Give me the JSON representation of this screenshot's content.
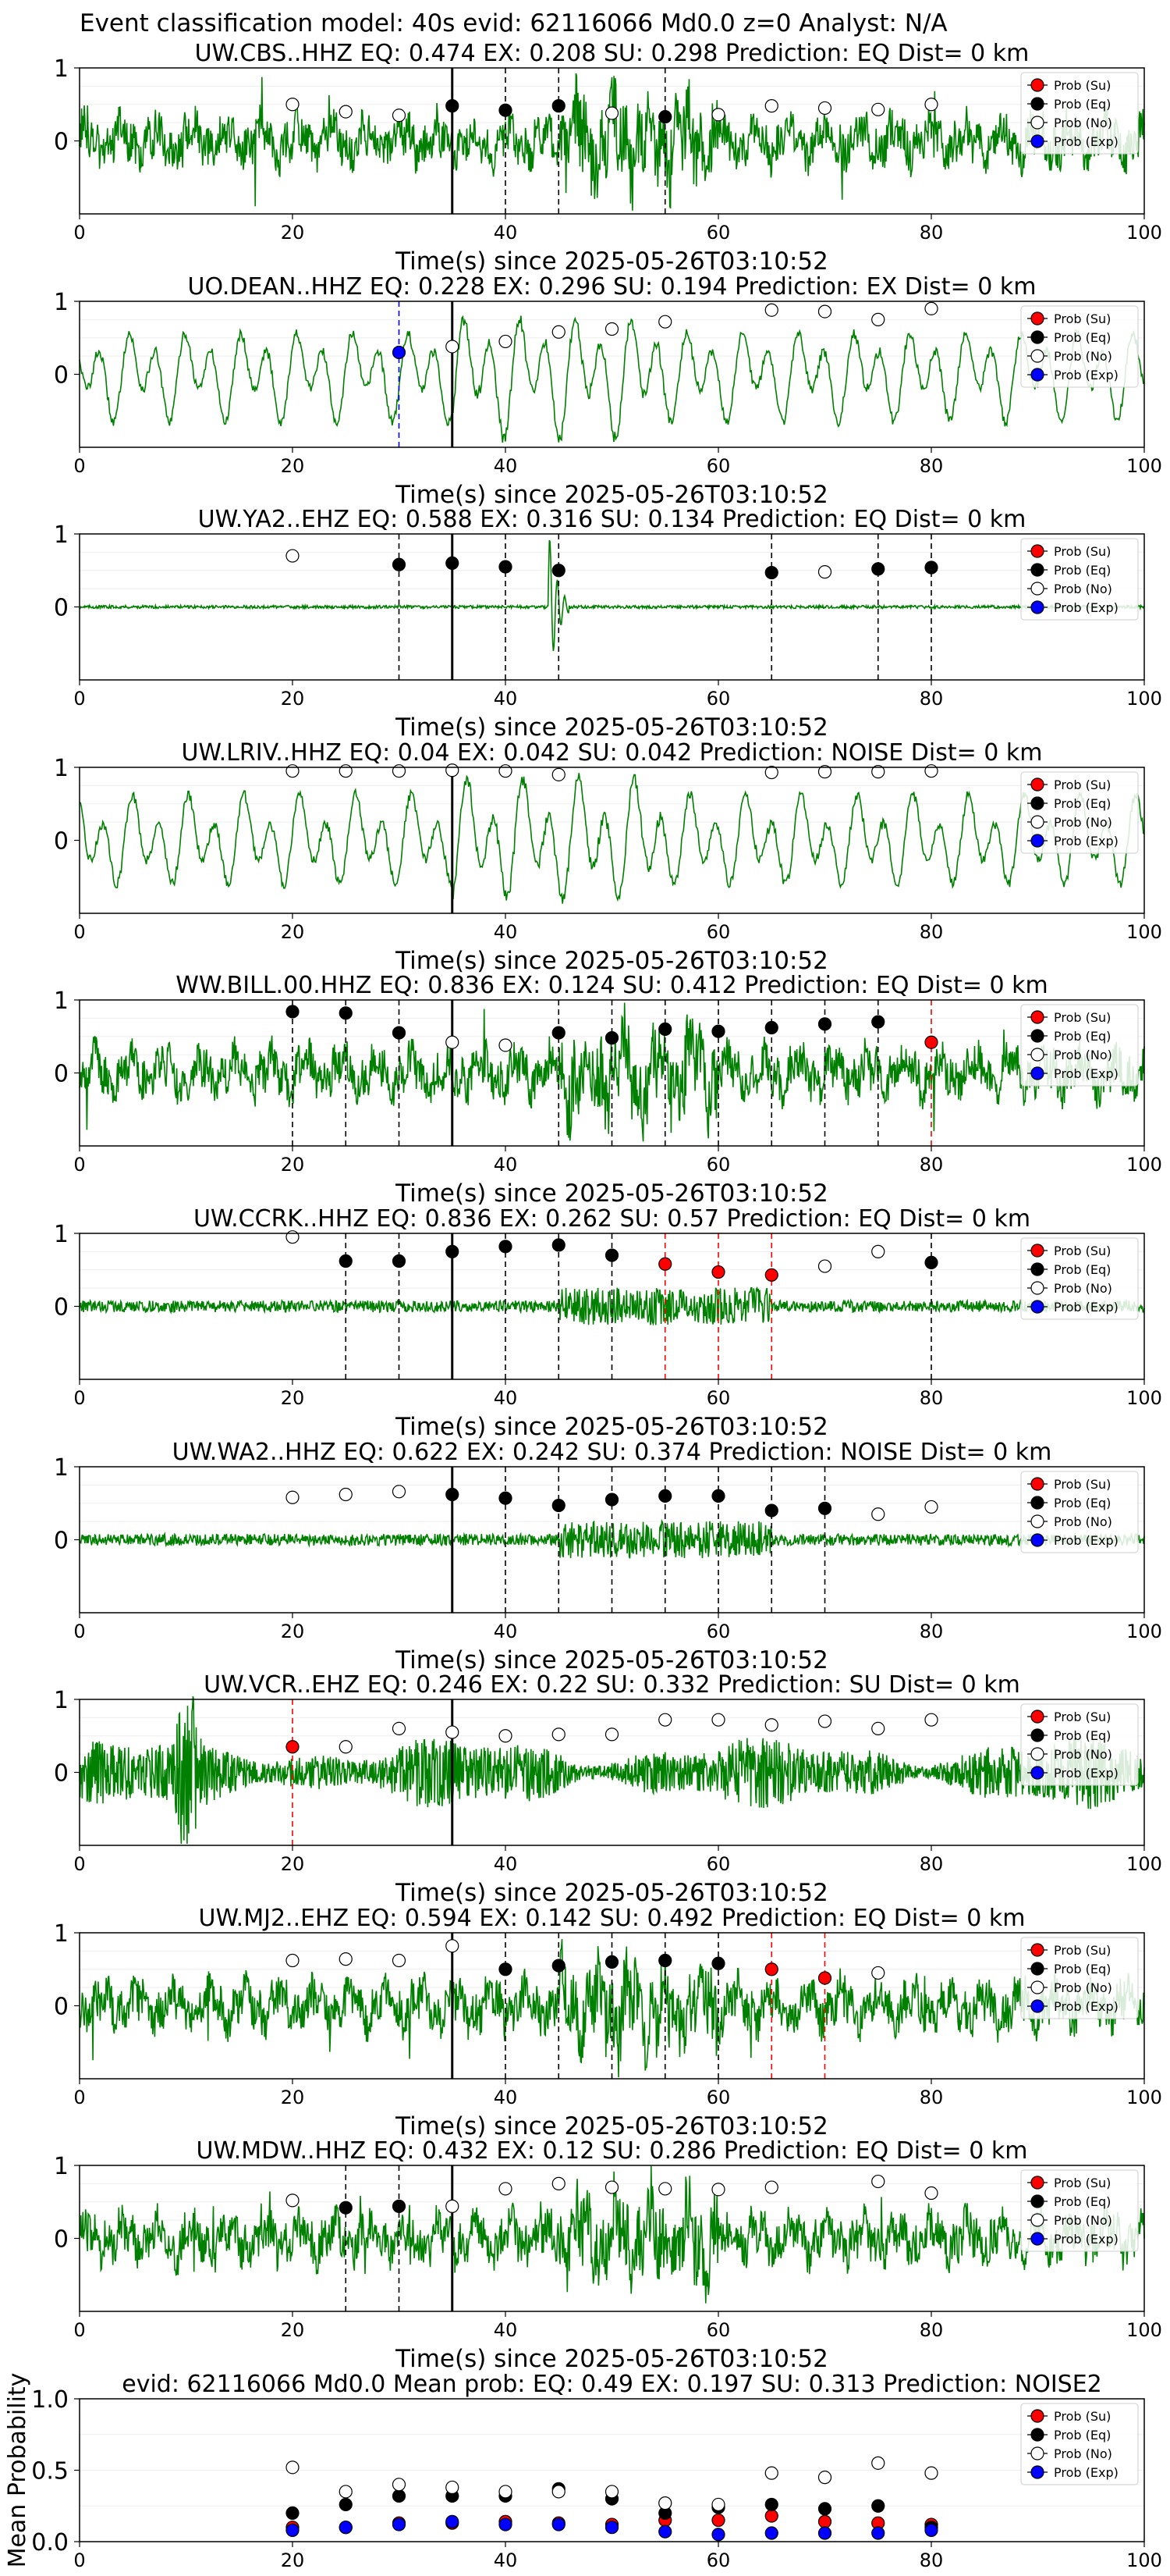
{
  "figure": {
    "suptitle": "Event classification model: 40s evid: 62116066 Md0.0 z=0 Analyst: N/A",
    "colors": {
      "waveform": "#008000",
      "su": "#ff0000",
      "eq": "#000000",
      "no": "#ffffff",
      "exp": "#0000ff",
      "pick_line": "#000000"
    },
    "legend": [
      "Prob (Su)",
      "Prob (Eq)",
      "Prob (No)",
      "Prob (Exp)"
    ]
  },
  "chart_data": [
    {
      "type": "line",
      "title": "UW.CBS..HHZ   EQ: 0.474  EX: 0.208  SU: 0.298   Prediction: EQ    Dist= 0 km",
      "xlabel": "Time(s) since 2025-05-26T03:10:52",
      "xlim": [
        0,
        100
      ],
      "xticks": [
        0,
        20,
        40,
        60,
        80,
        100
      ],
      "yticks": [
        0,
        1
      ],
      "waveform_style": "noisy",
      "pick_time": 35,
      "points": [
        {
          "x": 20,
          "y": 0.5,
          "cls": "no"
        },
        {
          "x": 25,
          "y": 0.4,
          "cls": "no"
        },
        {
          "x": 30,
          "y": 0.35,
          "cls": "no"
        },
        {
          "x": 35,
          "y": 0.48,
          "cls": "eq"
        },
        {
          "x": 40,
          "y": 0.42,
          "cls": "eq"
        },
        {
          "x": 45,
          "y": 0.48,
          "cls": "eq"
        },
        {
          "x": 50,
          "y": 0.38,
          "cls": "no"
        },
        {
          "x": 55,
          "y": 0.33,
          "cls": "eq"
        },
        {
          "x": 60,
          "y": 0.36,
          "cls": "no"
        },
        {
          "x": 65,
          "y": 0.48,
          "cls": "no"
        },
        {
          "x": 70,
          "y": 0.45,
          "cls": "no"
        },
        {
          "x": 75,
          "y": 0.43,
          "cls": "no"
        },
        {
          "x": 80,
          "y": 0.5,
          "cls": "no"
        }
      ]
    },
    {
      "type": "line",
      "title": "UO.DEAN..HHZ   EQ: 0.228  EX: 0.296  SU: 0.194   Prediction: EX    Dist= 0 km",
      "xlabel": "Time(s) since 2025-05-26T03:10:52",
      "xlim": [
        0,
        100
      ],
      "xticks": [
        0,
        20,
        40,
        60,
        80,
        100
      ],
      "yticks": [
        0,
        1
      ],
      "waveform_style": "wavy",
      "pick_time": 35,
      "points": [
        {
          "x": 30,
          "y": 0.3,
          "cls": "exp"
        },
        {
          "x": 35,
          "y": 0.38,
          "cls": "no"
        },
        {
          "x": 40,
          "y": 0.45,
          "cls": "no"
        },
        {
          "x": 45,
          "y": 0.58,
          "cls": "no"
        },
        {
          "x": 50,
          "y": 0.62,
          "cls": "no"
        },
        {
          "x": 55,
          "y": 0.72,
          "cls": "no"
        },
        {
          "x": 65,
          "y": 0.88,
          "cls": "no"
        },
        {
          "x": 70,
          "y": 0.86,
          "cls": "no"
        },
        {
          "x": 75,
          "y": 0.75,
          "cls": "no"
        },
        {
          "x": 80,
          "y": 0.9,
          "cls": "no"
        }
      ]
    },
    {
      "type": "line",
      "title": "UW.YA2..EHZ   EQ: 0.588  EX: 0.316  SU: 0.134   Prediction: EQ    Dist= 0 km",
      "xlabel": "Time(s) since 2025-05-26T03:10:52",
      "xlim": [
        0,
        100
      ],
      "xticks": [
        0,
        20,
        40,
        60,
        80,
        100
      ],
      "yticks": [
        0,
        1
      ],
      "waveform_style": "flat",
      "pick_time": 35,
      "points": [
        {
          "x": 20,
          "y": 0.7,
          "cls": "no"
        },
        {
          "x": 30,
          "y": 0.58,
          "cls": "eq"
        },
        {
          "x": 35,
          "y": 0.6,
          "cls": "eq"
        },
        {
          "x": 40,
          "y": 0.55,
          "cls": "eq"
        },
        {
          "x": 45,
          "y": 0.5,
          "cls": "eq"
        },
        {
          "x": 65,
          "y": 0.47,
          "cls": "eq"
        },
        {
          "x": 70,
          "y": 0.48,
          "cls": "no"
        },
        {
          "x": 75,
          "y": 0.52,
          "cls": "eq"
        },
        {
          "x": 80,
          "y": 0.54,
          "cls": "eq"
        }
      ]
    },
    {
      "type": "line",
      "title": "UW.LRIV..HHZ   EQ: 0.04  EX: 0.042  SU: 0.042   Prediction: NOISE    Dist= 0 km",
      "xlabel": "Time(s) since 2025-05-26T03:10:52",
      "xlim": [
        0,
        100
      ],
      "xticks": [
        0,
        20,
        40,
        60,
        80,
        100
      ],
      "yticks": [
        0,
        1
      ],
      "waveform_style": "wavy",
      "pick_time": 35,
      "points": [
        {
          "x": 20,
          "y": 0.95,
          "cls": "no"
        },
        {
          "x": 25,
          "y": 0.95,
          "cls": "no"
        },
        {
          "x": 30,
          "y": 0.95,
          "cls": "no"
        },
        {
          "x": 35,
          "y": 0.96,
          "cls": "no"
        },
        {
          "x": 40,
          "y": 0.95,
          "cls": "no"
        },
        {
          "x": 45,
          "y": 0.9,
          "cls": "no"
        },
        {
          "x": 65,
          "y": 0.93,
          "cls": "no"
        },
        {
          "x": 70,
          "y": 0.94,
          "cls": "no"
        },
        {
          "x": 75,
          "y": 0.94,
          "cls": "no"
        },
        {
          "x": 80,
          "y": 0.95,
          "cls": "no"
        }
      ]
    },
    {
      "type": "line",
      "title": "WW.BILL.00.HHZ   EQ: 0.836  EX: 0.124  SU: 0.412   Prediction: EQ    Dist= 0 km",
      "xlabel": "Time(s) since 2025-05-26T03:10:52",
      "xlim": [
        0,
        100
      ],
      "xticks": [
        0,
        20,
        40,
        60,
        80,
        100
      ],
      "yticks": [
        0,
        1
      ],
      "waveform_style": "noisy",
      "pick_time": 35,
      "points": [
        {
          "x": 20,
          "y": 0.84,
          "cls": "eq"
        },
        {
          "x": 25,
          "y": 0.82,
          "cls": "eq"
        },
        {
          "x": 30,
          "y": 0.55,
          "cls": "eq"
        },
        {
          "x": 35,
          "y": 0.42,
          "cls": "no"
        },
        {
          "x": 40,
          "y": 0.38,
          "cls": "no"
        },
        {
          "x": 45,
          "y": 0.55,
          "cls": "eq"
        },
        {
          "x": 50,
          "y": 0.48,
          "cls": "eq"
        },
        {
          "x": 55,
          "y": 0.6,
          "cls": "eq"
        },
        {
          "x": 60,
          "y": 0.57,
          "cls": "eq"
        },
        {
          "x": 65,
          "y": 0.62,
          "cls": "eq"
        },
        {
          "x": 70,
          "y": 0.67,
          "cls": "eq"
        },
        {
          "x": 75,
          "y": 0.7,
          "cls": "eq"
        },
        {
          "x": 80,
          "y": 0.42,
          "cls": "su"
        }
      ]
    },
    {
      "type": "line",
      "title": "UW.CCRK..HHZ   EQ: 0.836  EX: 0.262  SU: 0.57   Prediction: EQ    Dist= 0 km",
      "xlabel": "Time(s) since 2025-05-26T03:10:52",
      "xlim": [
        0,
        100
      ],
      "xticks": [
        0,
        20,
        40,
        60,
        80,
        100
      ],
      "yticks": [
        0,
        1
      ],
      "waveform_style": "quiet",
      "pick_time": 35,
      "points": [
        {
          "x": 20,
          "y": 0.95,
          "cls": "no"
        },
        {
          "x": 25,
          "y": 0.62,
          "cls": "eq"
        },
        {
          "x": 30,
          "y": 0.62,
          "cls": "eq"
        },
        {
          "x": 35,
          "y": 0.75,
          "cls": "eq"
        },
        {
          "x": 40,
          "y": 0.82,
          "cls": "eq"
        },
        {
          "x": 45,
          "y": 0.84,
          "cls": "eq"
        },
        {
          "x": 50,
          "y": 0.7,
          "cls": "eq"
        },
        {
          "x": 55,
          "y": 0.58,
          "cls": "su"
        },
        {
          "x": 60,
          "y": 0.47,
          "cls": "su"
        },
        {
          "x": 65,
          "y": 0.43,
          "cls": "su"
        },
        {
          "x": 70,
          "y": 0.55,
          "cls": "no"
        },
        {
          "x": 75,
          "y": 0.75,
          "cls": "no"
        },
        {
          "x": 80,
          "y": 0.6,
          "cls": "eq"
        }
      ]
    },
    {
      "type": "line",
      "title": "UW.WA2..HHZ   EQ: 0.622  EX: 0.242  SU: 0.374   Prediction: NOISE    Dist= 0 km",
      "xlabel": "Time(s) since 2025-05-26T03:10:52",
      "xlim": [
        0,
        100
      ],
      "xticks": [
        0,
        20,
        40,
        60,
        80,
        100
      ],
      "yticks": [
        0,
        1
      ],
      "waveform_style": "quiet",
      "pick_time": 35,
      "points": [
        {
          "x": 20,
          "y": 0.58,
          "cls": "no"
        },
        {
          "x": 25,
          "y": 0.62,
          "cls": "no"
        },
        {
          "x": 30,
          "y": 0.66,
          "cls": "no"
        },
        {
          "x": 35,
          "y": 0.62,
          "cls": "eq"
        },
        {
          "x": 40,
          "y": 0.57,
          "cls": "eq"
        },
        {
          "x": 45,
          "y": 0.47,
          "cls": "eq"
        },
        {
          "x": 50,
          "y": 0.55,
          "cls": "eq"
        },
        {
          "x": 55,
          "y": 0.6,
          "cls": "eq"
        },
        {
          "x": 60,
          "y": 0.6,
          "cls": "eq"
        },
        {
          "x": 65,
          "y": 0.4,
          "cls": "eq"
        },
        {
          "x": 70,
          "y": 0.43,
          "cls": "eq"
        },
        {
          "x": 75,
          "y": 0.35,
          "cls": "no"
        },
        {
          "x": 80,
          "y": 0.45,
          "cls": "no"
        }
      ]
    },
    {
      "type": "line",
      "title": "UW.VCR..EHZ   EQ: 0.246  EX: 0.22  SU: 0.332   Prediction: SU    Dist= 0 km",
      "xlabel": "Time(s) since 2025-05-26T03:10:52",
      "xlim": [
        0,
        100
      ],
      "xticks": [
        0,
        20,
        40,
        60,
        80,
        100
      ],
      "yticks": [
        0,
        1
      ],
      "waveform_style": "dense",
      "pick_time": 35,
      "points": [
        {
          "x": 20,
          "y": 0.35,
          "cls": "su"
        },
        {
          "x": 25,
          "y": 0.35,
          "cls": "no"
        },
        {
          "x": 30,
          "y": 0.6,
          "cls": "no"
        },
        {
          "x": 35,
          "y": 0.55,
          "cls": "no"
        },
        {
          "x": 40,
          "y": 0.5,
          "cls": "no"
        },
        {
          "x": 45,
          "y": 0.52,
          "cls": "no"
        },
        {
          "x": 50,
          "y": 0.52,
          "cls": "no"
        },
        {
          "x": 55,
          "y": 0.72,
          "cls": "no"
        },
        {
          "x": 60,
          "y": 0.72,
          "cls": "no"
        },
        {
          "x": 65,
          "y": 0.65,
          "cls": "no"
        },
        {
          "x": 70,
          "y": 0.7,
          "cls": "no"
        },
        {
          "x": 75,
          "y": 0.6,
          "cls": "no"
        },
        {
          "x": 80,
          "y": 0.72,
          "cls": "no"
        }
      ]
    },
    {
      "type": "line",
      "title": "UW.MJ2..EHZ   EQ: 0.594  EX: 0.142  SU: 0.492   Prediction: EQ    Dist= 0 km",
      "xlabel": "Time(s) since 2025-05-26T03:10:52",
      "xlim": [
        0,
        100
      ],
      "xticks": [
        0,
        20,
        40,
        60,
        80,
        100
      ],
      "yticks": [
        0,
        1
      ],
      "waveform_style": "noisy",
      "pick_time": 35,
      "points": [
        {
          "x": 20,
          "y": 0.62,
          "cls": "no"
        },
        {
          "x": 25,
          "y": 0.64,
          "cls": "no"
        },
        {
          "x": 30,
          "y": 0.62,
          "cls": "no"
        },
        {
          "x": 35,
          "y": 0.82,
          "cls": "no"
        },
        {
          "x": 40,
          "y": 0.5,
          "cls": "eq"
        },
        {
          "x": 45,
          "y": 0.55,
          "cls": "eq"
        },
        {
          "x": 50,
          "y": 0.6,
          "cls": "eq"
        },
        {
          "x": 55,
          "y": 0.62,
          "cls": "eq"
        },
        {
          "x": 60,
          "y": 0.58,
          "cls": "eq"
        },
        {
          "x": 65,
          "y": 0.5,
          "cls": "su"
        },
        {
          "x": 70,
          "y": 0.38,
          "cls": "su"
        },
        {
          "x": 75,
          "y": 0.45,
          "cls": "no"
        }
      ]
    },
    {
      "type": "line",
      "title": "UW.MDW..HHZ   EQ: 0.432  EX: 0.12  SU: 0.286   Prediction: EQ    Dist= 0 km",
      "xlabel": "Time(s) since 2025-05-26T03:10:52",
      "xlim": [
        0,
        100
      ],
      "xticks": [
        0,
        20,
        40,
        60,
        80,
        100
      ],
      "yticks": [
        0,
        1
      ],
      "waveform_style": "noisy",
      "pick_time": 35,
      "points": [
        {
          "x": 20,
          "y": 0.52,
          "cls": "no"
        },
        {
          "x": 25,
          "y": 0.42,
          "cls": "eq"
        },
        {
          "x": 30,
          "y": 0.44,
          "cls": "eq"
        },
        {
          "x": 35,
          "y": 0.44,
          "cls": "no"
        },
        {
          "x": 40,
          "y": 0.68,
          "cls": "no"
        },
        {
          "x": 45,
          "y": 0.75,
          "cls": "no"
        },
        {
          "x": 50,
          "y": 0.7,
          "cls": "no"
        },
        {
          "x": 55,
          "y": 0.68,
          "cls": "no"
        },
        {
          "x": 60,
          "y": 0.67,
          "cls": "no"
        },
        {
          "x": 65,
          "y": 0.7,
          "cls": "no"
        },
        {
          "x": 75,
          "y": 0.78,
          "cls": "no"
        },
        {
          "x": 80,
          "y": 0.62,
          "cls": "no"
        }
      ]
    },
    {
      "type": "scatter",
      "title": "evid: 62116066   Md0.0   Mean prob:   EQ: 0.49  EX: 0.197  SU: 0.313   Prediction: NOISE2",
      "xlabel": "",
      "ylabel": "Mean Probability",
      "xlim": [
        0,
        100
      ],
      "ylim": [
        0,
        1
      ],
      "xticks": [
        0,
        20,
        40,
        60,
        80,
        100
      ],
      "yticks": [
        "0.0",
        "0.5",
        "1.0"
      ],
      "series": [
        {
          "name": "Prob (Su)",
          "cls": "su",
          "x": [
            20,
            25,
            30,
            35,
            40,
            45,
            50,
            55,
            60,
            65,
            70,
            75,
            80
          ],
          "y": [
            0.1,
            0.1,
            0.13,
            0.13,
            0.14,
            0.13,
            0.12,
            0.15,
            0.15,
            0.18,
            0.14,
            0.13,
            0.12
          ]
        },
        {
          "name": "Prob (Eq)",
          "cls": "eq",
          "x": [
            20,
            25,
            30,
            35,
            40,
            45,
            50,
            55,
            60,
            65,
            70,
            75,
            80
          ],
          "y": [
            0.2,
            0.26,
            0.32,
            0.32,
            0.32,
            0.37,
            0.3,
            0.2,
            0.24,
            0.26,
            0.23,
            0.25,
            0.1
          ]
        },
        {
          "name": "Prob (No)",
          "cls": "no",
          "x": [
            20,
            25,
            30,
            35,
            40,
            45,
            50,
            55,
            60,
            65,
            70,
            75,
            80
          ],
          "y": [
            0.52,
            0.35,
            0.4,
            0.38,
            0.35,
            0.35,
            0.35,
            0.27,
            0.26,
            0.48,
            0.45,
            0.55,
            0.48
          ]
        },
        {
          "name": "Prob (Exp)",
          "cls": "exp",
          "x": [
            20,
            25,
            30,
            35,
            40,
            45,
            50,
            55,
            60,
            65,
            70,
            75,
            80
          ],
          "y": [
            0.08,
            0.1,
            0.12,
            0.14,
            0.12,
            0.12,
            0.1,
            0.07,
            0.05,
            0.06,
            0.06,
            0.06,
            0.08
          ]
        }
      ]
    }
  ]
}
